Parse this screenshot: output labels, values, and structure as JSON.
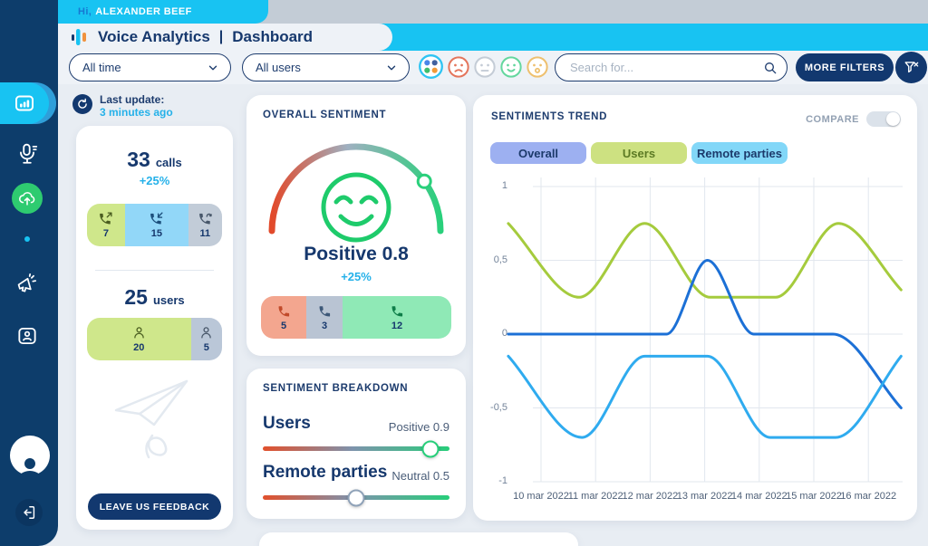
{
  "topbar": {
    "greeting_prefix": "Hi,",
    "user_name": "ALEXANDER BEEF",
    "app_title": "Voice Analytics",
    "title_separator": "|",
    "page_title": "Dashboard"
  },
  "filter_bar": {
    "time_filter": "All time",
    "user_filter": "All users",
    "search_placeholder": "Search for...",
    "more_filters": "MORE FILTERS",
    "sentiment_filters": [
      "all-sentiments",
      "negative",
      "neutral",
      "positive",
      "surprised"
    ]
  },
  "last_update": {
    "label": "Last update:",
    "value": "3 minutes ago"
  },
  "stats_card": {
    "calls": {
      "value": "33",
      "unit": "calls",
      "delta": "+25%",
      "segments": [
        {
          "kind": "outgoing",
          "count": "7",
          "grow": 9,
          "bg": "#cfe78b",
          "icon_color": "#4a5d20"
        },
        {
          "kind": "incoming",
          "count": "15",
          "grow": 15,
          "bg": "#92d7f8",
          "icon_color": "#1c4f7c"
        },
        {
          "kind": "missed",
          "count": "11",
          "grow": 8,
          "bg": "#c2ccd8",
          "icon_color": "#475669"
        }
      ]
    },
    "users": {
      "value": "25",
      "unit": "users",
      "segments": [
        {
          "count": "20",
          "grow": 20,
          "bg": "#cfe78b",
          "icon_color": "#4a5d20"
        },
        {
          "count": "5",
          "grow": 6,
          "bg": "#bac7d8",
          "icon_color": "#475669"
        }
      ]
    },
    "feedback_button": "LEAVE US FEEDBACK"
  },
  "overall_sentiment": {
    "title": "OVERALL SENTIMENT",
    "gauge_value": 0.8,
    "label": "Positive 0.8",
    "delta": "+25%",
    "segments": [
      {
        "sentiment": "negative",
        "count": "5",
        "grow": 5,
        "bg": "#f3a68f",
        "icon_color": "#c14a2a"
      },
      {
        "sentiment": "neutral",
        "count": "3",
        "grow": 4,
        "bg": "#b9c4d3",
        "icon_color": "#3d5878"
      },
      {
        "sentiment": "positive",
        "count": "12",
        "grow": 12,
        "bg": "#8fe9b6",
        "icon_color": "#0e7d48"
      }
    ]
  },
  "sentiment_breakdown": {
    "title": "SENTIMENT BREAKDOWN",
    "rows": [
      {
        "label": "Users",
        "value_label": "Positive 0.9",
        "value": 0.9,
        "knob_color": "#27ce7a"
      },
      {
        "label": "Remote parties",
        "value_label": "Neutral 0.5",
        "value": 0.5,
        "knob_color": "#8fa2b8"
      }
    ]
  },
  "chart_data": {
    "type": "line",
    "title": "SENTIMENTS TREND",
    "compare_label": "COMPARE",
    "compare_on": false,
    "grid": true,
    "legend_position": "top",
    "legend": [
      {
        "label": "Overall",
        "bg": "#9db0f1",
        "text": "#1c3a6b"
      },
      {
        "label": "Users",
        "bg": "#cde181",
        "text": "#5c7a24"
      },
      {
        "label": "Remote parties",
        "bg": "#82d7f8",
        "text": "#1c3a6b"
      }
    ],
    "x_labels": [
      "10 mar 2022",
      "11 mar 2022",
      "12 mar 2022",
      "13 mar 2022",
      "14 mar 2022",
      "15 mar 2022",
      "16 mar 2022"
    ],
    "x_unit": "days_from_10_mar_2022",
    "x_range_days": [
      -0.6,
      6.6
    ],
    "y_ticks": [
      1,
      0.5,
      0,
      -0.5,
      -1
    ],
    "y_tick_labels": [
      "1",
      "0,5",
      "0",
      "-0,5",
      "-1"
    ],
    "ylim": [
      -1,
      1
    ],
    "series": [
      {
        "name": "Users",
        "color": "#a5cb3d",
        "points": [
          [
            -0.6,
            0.75
          ],
          [
            0.7,
            0.25
          ],
          [
            1.9,
            0.75
          ],
          [
            3.1,
            0.25
          ],
          [
            4.3,
            0.25
          ],
          [
            5.45,
            0.75
          ],
          [
            6.6,
            0.3
          ]
        ]
      },
      {
        "name": "Overall",
        "color": "#1c70d6",
        "points": [
          [
            -0.6,
            0
          ],
          [
            2.3,
            0
          ],
          [
            3.05,
            0.5
          ],
          [
            3.9,
            0
          ],
          [
            5.35,
            0
          ],
          [
            6.6,
            -0.5
          ]
        ]
      },
      {
        "name": "Remote parties",
        "color": "#2fabef",
        "points": [
          [
            -0.6,
            -0.15
          ],
          [
            0.75,
            -0.7
          ],
          [
            1.9,
            -0.15
          ],
          [
            3.05,
            -0.15
          ],
          [
            4.2,
            -0.7
          ],
          [
            5.4,
            -0.7
          ],
          [
            6.6,
            -0.15
          ]
        ]
      }
    ]
  }
}
